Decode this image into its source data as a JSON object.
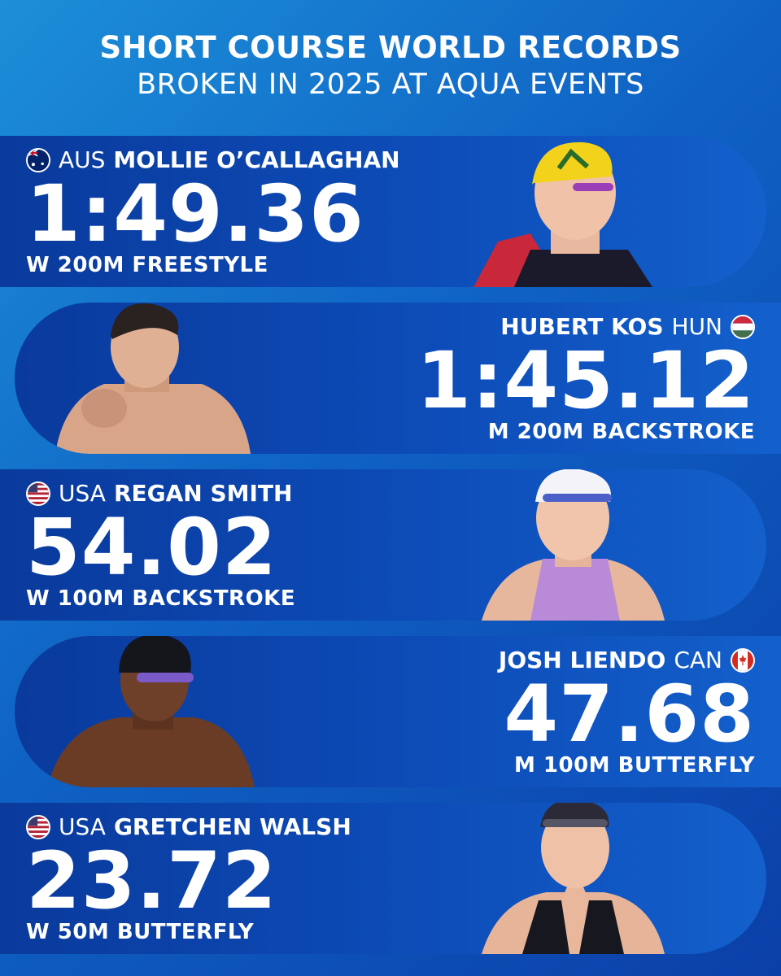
{
  "header": {
    "line1": "SHORT COURSE WORLD RECORDS",
    "line2": "BROKEN IN 2025 AT AQUA EVENTS"
  },
  "records": [
    {
      "country": "AUS",
      "name": "MOLLIE O’CALLAGHAN",
      "time": "1:49.36",
      "event": "W 200M FREESTYLE",
      "flag_icon": "australia-flag-icon"
    },
    {
      "country": "HUN",
      "name": "HUBERT KOS",
      "time": "1:45.12",
      "event": "M 200M BACKSTROKE",
      "flag_icon": "hungary-flag-icon"
    },
    {
      "country": "USA",
      "name": "REGAN SMITH",
      "time": "54.02",
      "event": "W 100M BACKSTROKE",
      "flag_icon": "usa-flag-icon"
    },
    {
      "country": "CAN",
      "name": "JOSH LIENDO",
      "time": "47.68",
      "event": "M 100M BUTTERFLY",
      "flag_icon": "canada-flag-icon"
    },
    {
      "country": "USA",
      "name": "GRETCHEN WALSH",
      "time": "23.72",
      "event": "W 50M BUTTERFLY",
      "flag_icon": "usa-flag-icon"
    }
  ],
  "colors": {
    "background": "#0f62c4",
    "card": "#0d4cb8",
    "text": "#ffffff"
  }
}
